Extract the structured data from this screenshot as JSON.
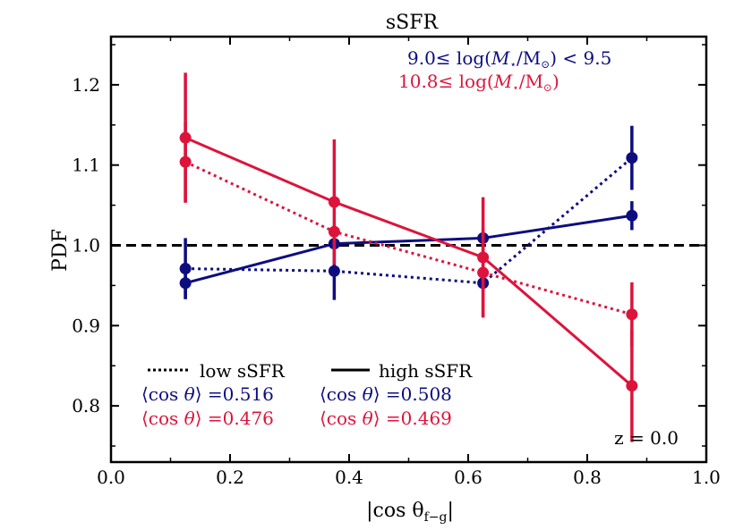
{
  "chart_data": {
    "type": "line",
    "title": "sSFR",
    "xlabel": "|cos θ",
    "xlabel_sub": "f−g",
    "xlabel_close": "|",
    "ylabel": "PDF",
    "xlim": [
      0.0,
      1.0
    ],
    "ylim": [
      0.73,
      1.26
    ],
    "xticks": [
      0.0,
      0.2,
      0.4,
      0.6,
      0.8,
      1.0
    ],
    "xtick_labels": [
      "0.0",
      "0.2",
      "0.4",
      "0.6",
      "0.8",
      "1.0"
    ],
    "yticks": [
      0.8,
      0.9,
      1.0,
      1.1,
      1.2
    ],
    "ytick_labels": [
      "0.8",
      "0.9",
      "1.0",
      "1.1",
      "1.2"
    ],
    "reference_line": 1.0,
    "colors": {
      "blue": "#0d0d80",
      "red": "#dc143c",
      "ref": "#000000"
    },
    "mass_bins": [
      {
        "id": "low-mass",
        "pre": "9.0≤ log(",
        "M": "M",
        "star": "⋆",
        "sun": "/M",
        "odot": "⊙",
        "post": ") < 9.5",
        "color": "#0d0d80"
      },
      {
        "id": "high-mass",
        "pre": "10.8≤ log(",
        "M": "M",
        "star": "⋆",
        "sun": "/M",
        "odot": "⊙",
        "post": ")",
        "color": "#dc143c"
      }
    ],
    "series": [
      {
        "name": "low mass, low sSFR",
        "color": "#0d0d80",
        "style": "dotted",
        "x": [
          0.125,
          0.375,
          0.625,
          0.875
        ],
        "y": [
          0.971,
          0.968,
          0.953,
          1.109
        ],
        "yerr": [
          0.038,
          0.036,
          0.0,
          0.04
        ]
      },
      {
        "name": "low mass, high sSFR",
        "color": "#0d0d80",
        "style": "solid",
        "x": [
          0.125,
          0.375,
          0.625,
          0.875
        ],
        "y": [
          0.953,
          1.002,
          1.009,
          1.037
        ],
        "yerr": [
          0.02,
          0.0,
          0.0,
          0.018
        ]
      },
      {
        "name": "high mass, low sSFR",
        "color": "#dc143c",
        "style": "dotted",
        "x": [
          0.125,
          0.375,
          0.625,
          0.875
        ],
        "y": [
          1.104,
          1.017,
          0.966,
          0.914
        ],
        "yerr": [
          0.05,
          0.0,
          0.055,
          0.04
        ]
      },
      {
        "name": "high mass, high sSFR",
        "color": "#dc143c",
        "style": "solid",
        "x": [
          0.125,
          0.375,
          0.625,
          0.875
        ],
        "y": [
          1.134,
          1.054,
          0.985,
          0.825
        ],
        "yerr": [
          0.081,
          0.078,
          0.075,
          0.07
        ]
      }
    ],
    "legend_styles": [
      {
        "label": "low sSFR",
        "style": "dotted"
      },
      {
        "label": "high sSFR",
        "style": "solid"
      }
    ],
    "means": {
      "prefix": "⟨cos ",
      "theta": "θ",
      "suffix": "⟩ =",
      "rows": [
        {
          "color": "#0d0d80",
          "low": "0.516",
          "high": "0.508"
        },
        {
          "color": "#dc143c",
          "low": "0.476",
          "high": "0.469"
        }
      ]
    },
    "redshift_label": "z = 0.0"
  }
}
